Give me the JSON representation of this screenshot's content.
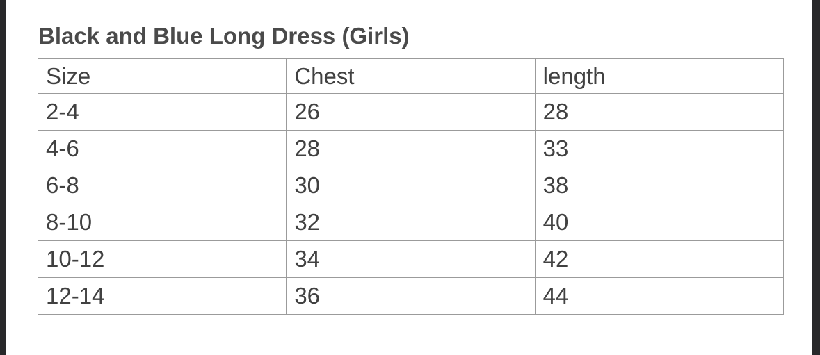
{
  "title": "Black and Blue Long Dress (Girls)",
  "size_chart": {
    "columns": [
      "Size",
      "Chest",
      "length"
    ],
    "rows": [
      [
        "2-4",
        "26",
        "28"
      ],
      [
        "4-6",
        "28",
        "33"
      ],
      [
        "6-8",
        "30",
        "38"
      ],
      [
        "8-10",
        "32",
        "40"
      ],
      [
        "10-12",
        "34",
        "42"
      ],
      [
        "12-14",
        "36",
        "44"
      ]
    ]
  },
  "colors": {
    "page_background": "#ffffff",
    "letterbox_bar": "#28282a",
    "title_text": "#4a4a4a",
    "cell_text": "#414141",
    "table_border": "#9b9b9b"
  }
}
